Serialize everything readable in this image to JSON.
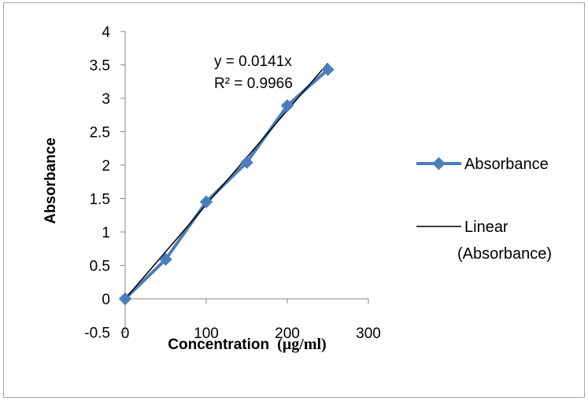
{
  "chart_data": {
    "type": "scatter",
    "title": "",
    "xlabel": "Concentration",
    "xlabel_unit": "(µg/ml)",
    "ylabel": "Absorbance",
    "xlim": [
      -10,
      300
    ],
    "ylim": [
      -0.5,
      4
    ],
    "xticks": [
      0,
      100,
      200,
      300
    ],
    "yticks": [
      -0.5,
      0,
      0.5,
      1,
      1.5,
      2,
      2.5,
      3,
      3.5,
      4
    ],
    "grid": false,
    "legend_position": "right",
    "series": [
      {
        "name": "Absorbance",
        "x": [
          0,
          50,
          100,
          150,
          200,
          250
        ],
        "y": [
          0,
          0.59,
          1.45,
          2.04,
          2.89,
          3.43
        ],
        "color": "#4a7ebb",
        "marker": "diamond"
      },
      {
        "name": "Linear (Absorbance)",
        "type": "trendline",
        "slope": 0.0141,
        "intercept": 0,
        "x": [
          0,
          250
        ],
        "color": "#000000"
      }
    ],
    "annotations": [
      "y = 0.0141x",
      "R² = 0.9966"
    ],
    "legend": {
      "series_label": "Absorbance",
      "trend_label_line1": "Linear",
      "trend_label_line2": "(Absorbance)"
    }
  }
}
